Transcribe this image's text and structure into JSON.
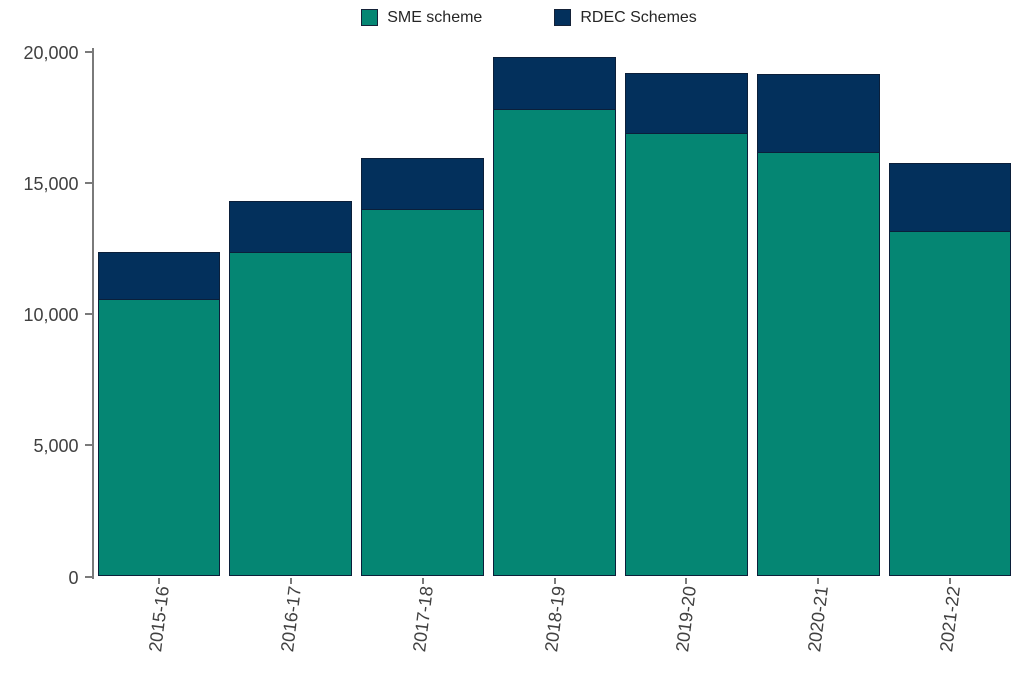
{
  "chart_data": {
    "type": "bar",
    "stacked": true,
    "title": "",
    "xlabel": "",
    "ylabel": "",
    "categories": [
      "2015-16",
      "2016-17",
      "2017-18",
      "2018-19",
      "2019-20",
      "2020-21",
      "2021-22"
    ],
    "series": [
      {
        "name": "SME scheme",
        "color": "#058673",
        "values": [
          10590,
          12380,
          14030,
          17820,
          16930,
          16190,
          13170
        ]
      },
      {
        "name": "RDEC Schemes",
        "color": "#03305c",
        "values": [
          1790,
          1930,
          1910,
          1980,
          2260,
          2960,
          2580
        ]
      }
    ],
    "totals": [
      12380,
      14310,
      15940,
      19800,
      19190,
      19150,
      15750
    ],
    "ylim": [
      0,
      20000
    ],
    "y_ticks": [
      0,
      5000,
      10000,
      15000,
      20000
    ],
    "y_tick_labels": [
      "0",
      "5,000",
      "10,000",
      "15,000",
      "20,000"
    ],
    "legend_position": "top",
    "grid": false,
    "style": {
      "background": "#ffffff",
      "axis_color": "#7a7a7a",
      "tick_label_color": "#404040",
      "legend_text_color": "#262626",
      "bar_border_color": "#0b1f3a"
    }
  }
}
